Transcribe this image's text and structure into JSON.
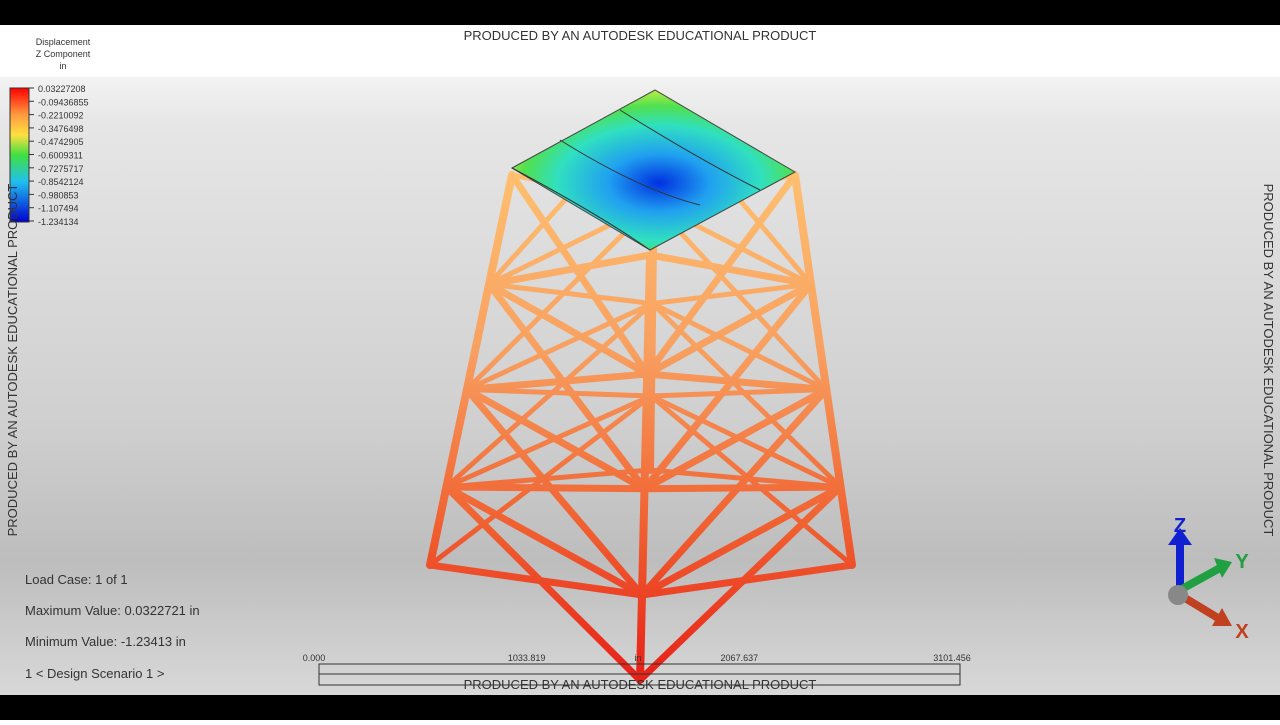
{
  "watermark": "PRODUCED BY AN AUTODESK EDUCATIONAL PRODUCT",
  "legend": {
    "title": [
      "Displacement",
      "Z Component",
      "in"
    ],
    "labels": [
      "0.03227208",
      "-0.09436855",
      "-0.2210092",
      "-0.3476498",
      "-0.4742905",
      "-0.6009311",
      "-0.7275717",
      "-0.8542124",
      "-0.980853",
      "-1.107494",
      "-1.234134"
    ]
  },
  "info": {
    "load_case": "Load Case:  1 of 1",
    "max": "Maximum Value: 0.0322721 in",
    "min": "Minimum Value: -1.23413 in",
    "scenario": "1 < Design Scenario 1 >"
  },
  "scale_bar": {
    "labels": [
      "0.000",
      "1033.819",
      "2067.637",
      "3101.456"
    ],
    "unit": "in"
  },
  "triad": {
    "x": "X",
    "y": "Y",
    "z": "Z"
  }
}
